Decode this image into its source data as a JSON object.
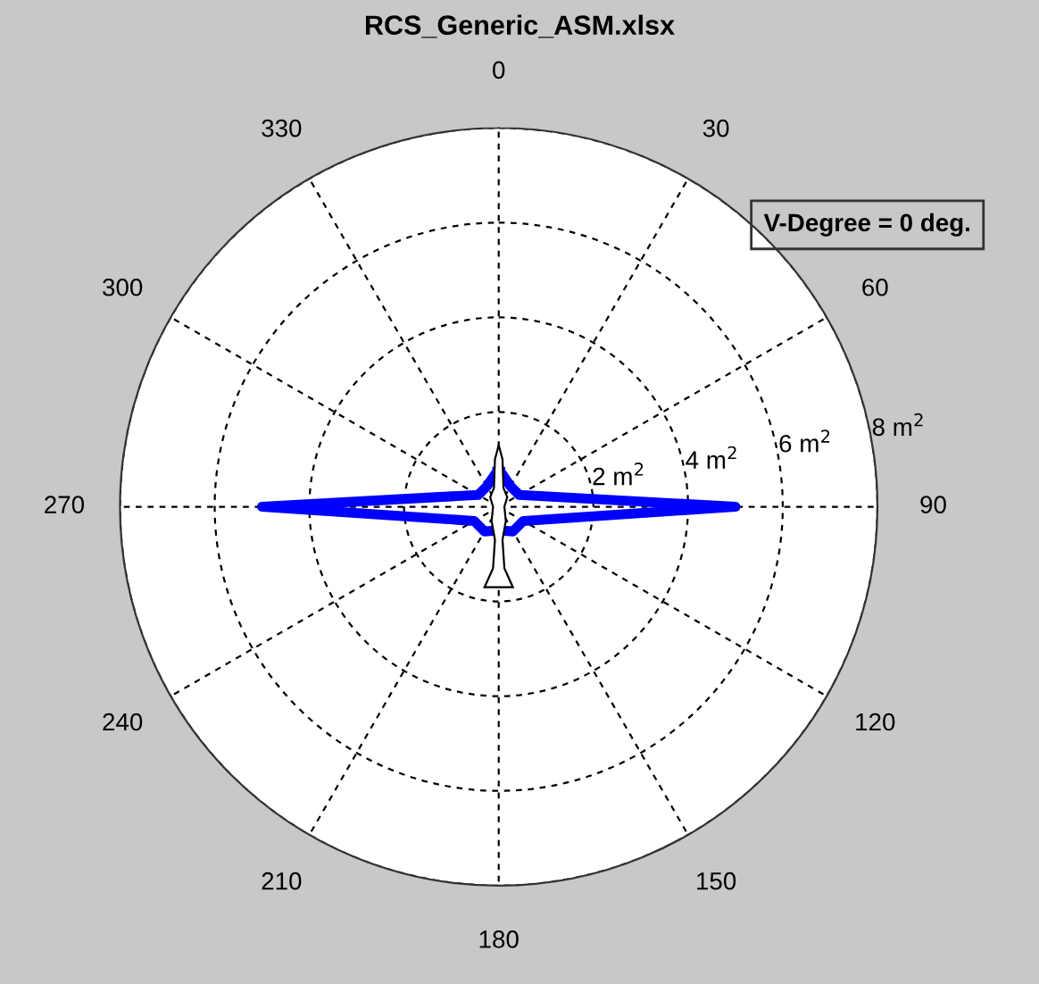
{
  "chart_data": {
    "type": "radar",
    "title": "RCS_Generic_ASM.xlsx",
    "categories": [
      "0",
      "30",
      "60",
      "90",
      "120",
      "150",
      "180",
      "210",
      "240",
      "270",
      "300",
      "330"
    ],
    "ylim": [
      0,
      8
    ],
    "yticks": [
      {
        "value": 2,
        "label": "2 m$^{2}$"
      },
      {
        "value": 4,
        "label": "4 m$^{2}$"
      },
      {
        "value": 6,
        "label": "6 m$^{2}$"
      },
      {
        "value": 8,
        "label": "8 m$^{2}$"
      }
    ],
    "grid": true,
    "line_style": "solid",
    "annotations": [
      "V-Degree = 0 deg."
    ],
    "series": [
      {
        "color": "#0000ff",
        "values": [
          0.8,
          0.5,
          0.5,
          5.0,
          0.6,
          0.6,
          0.5,
          0.6,
          0.6,
          5.0,
          0.5,
          0.5
        ]
      }
    ]
  }
}
